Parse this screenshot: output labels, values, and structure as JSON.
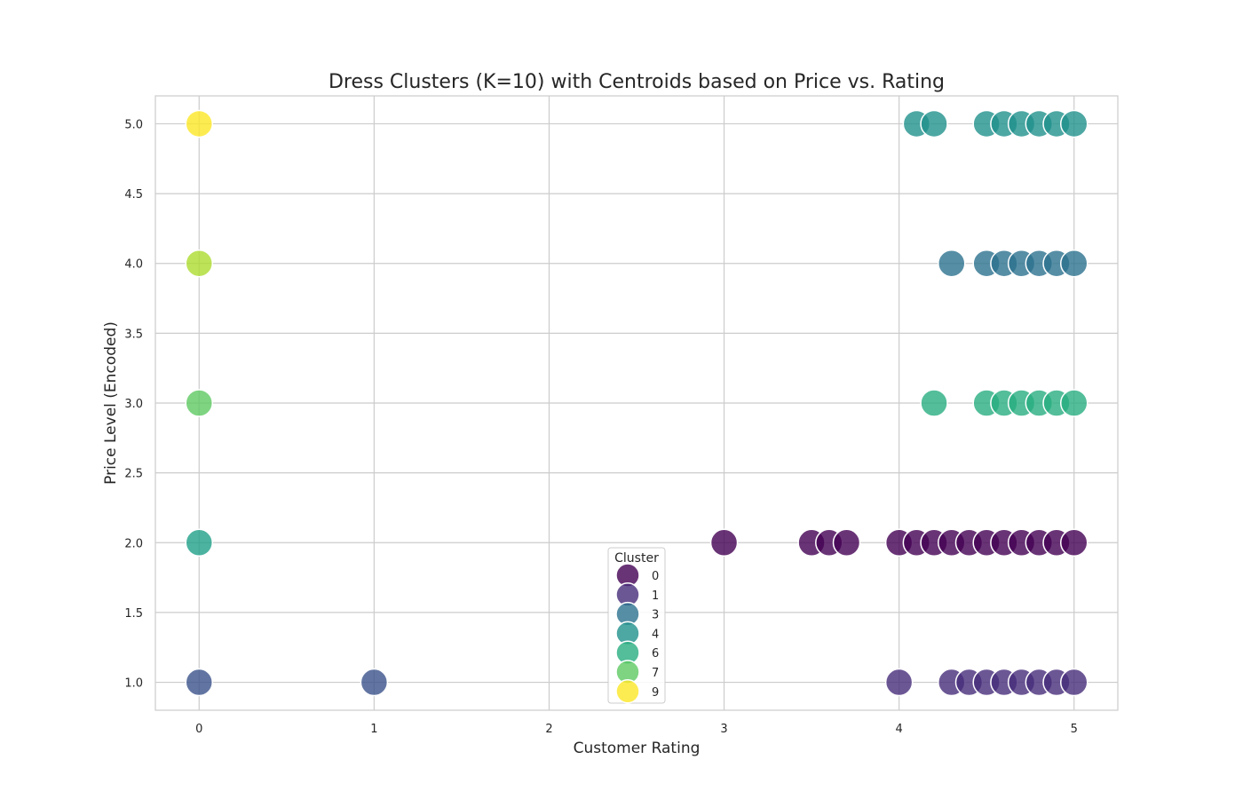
{
  "chart_data": {
    "type": "scatter",
    "title": "Dress Clusters (K=10) with Centroids based on Price vs. Rating",
    "xlabel": "Customer Rating",
    "ylabel": "Price Level (Encoded)",
    "xlim": [
      -0.25,
      5.25
    ],
    "ylim": [
      0.8,
      5.2
    ],
    "xticks": [
      0,
      1,
      2,
      3,
      4,
      5
    ],
    "xtick_labels": [
      "0",
      "1",
      "2",
      "3",
      "4",
      "5"
    ],
    "yticks": [
      1.0,
      1.5,
      2.0,
      2.5,
      3.0,
      3.5,
      4.0,
      4.5,
      5.0
    ],
    "ytick_labels": [
      "1.0",
      "1.5",
      "2.0",
      "2.5",
      "3.0",
      "3.5",
      "4.0",
      "4.5",
      "5.0"
    ],
    "grid": true,
    "legend": {
      "title": "Cluster",
      "placement": "lower-center",
      "entries": [
        {
          "label": "0",
          "color": "#440154"
        },
        {
          "label": "1",
          "color": "#472d7b"
        },
        {
          "label": "3",
          "color": "#2c728e"
        },
        {
          "label": "4",
          "color": "#21918c"
        },
        {
          "label": "6",
          "color": "#28ae80"
        },
        {
          "label": "7",
          "color": "#5ec962"
        },
        {
          "label": "9",
          "color": "#fde725"
        }
      ]
    },
    "series": [
      {
        "cluster": "0",
        "color": "#440154",
        "points": [
          [
            3.0,
            2
          ],
          [
            3.5,
            2
          ],
          [
            3.6,
            2
          ],
          [
            3.7,
            2
          ],
          [
            4.0,
            2
          ],
          [
            4.1,
            2
          ],
          [
            4.2,
            2
          ],
          [
            4.3,
            2
          ],
          [
            4.4,
            2
          ],
          [
            4.5,
            2
          ],
          [
            4.6,
            2
          ],
          [
            4.7,
            2
          ],
          [
            4.8,
            2
          ],
          [
            4.9,
            2
          ],
          [
            5.0,
            2
          ]
        ]
      },
      {
        "cluster": "1",
        "color": "#472d7b",
        "points": [
          [
            4.0,
            1
          ],
          [
            4.3,
            1
          ],
          [
            4.4,
            1
          ],
          [
            4.5,
            1
          ],
          [
            4.6,
            1
          ],
          [
            4.7,
            1
          ],
          [
            4.8,
            1
          ],
          [
            4.9,
            1
          ],
          [
            5.0,
            1
          ]
        ]
      },
      {
        "cluster": "2",
        "color": "#3b528b",
        "points": [
          [
            0,
            1
          ],
          [
            1,
            1
          ]
        ]
      },
      {
        "cluster": "3",
        "color": "#2c728e",
        "points": [
          [
            4.3,
            4
          ],
          [
            4.5,
            4
          ],
          [
            4.6,
            4
          ],
          [
            4.7,
            4
          ],
          [
            4.8,
            4
          ],
          [
            4.9,
            4
          ],
          [
            5.0,
            4
          ]
        ]
      },
      {
        "cluster": "4",
        "color": "#21918c",
        "points": [
          [
            4.1,
            5
          ],
          [
            4.2,
            5
          ],
          [
            4.5,
            5
          ],
          [
            4.6,
            5
          ],
          [
            4.7,
            5
          ],
          [
            4.8,
            5
          ],
          [
            4.9,
            5
          ],
          [
            5.0,
            5
          ]
        ]
      },
      {
        "cluster": "5",
        "color": "#1fa088",
        "points": [
          [
            0,
            2
          ]
        ]
      },
      {
        "cluster": "6",
        "color": "#28ae80",
        "points": [
          [
            4.2,
            3
          ],
          [
            4.5,
            3
          ],
          [
            4.6,
            3
          ],
          [
            4.7,
            3
          ],
          [
            4.8,
            3
          ],
          [
            4.9,
            3
          ],
          [
            5.0,
            3
          ]
        ]
      },
      {
        "cluster": "7",
        "color": "#5ec962",
        "points": [
          [
            0,
            3
          ]
        ]
      },
      {
        "cluster": "8",
        "color": "#addc30",
        "points": [
          [
            0,
            4
          ]
        ]
      },
      {
        "cluster": "9",
        "color": "#fde725",
        "points": [
          [
            0,
            5
          ]
        ]
      }
    ]
  }
}
